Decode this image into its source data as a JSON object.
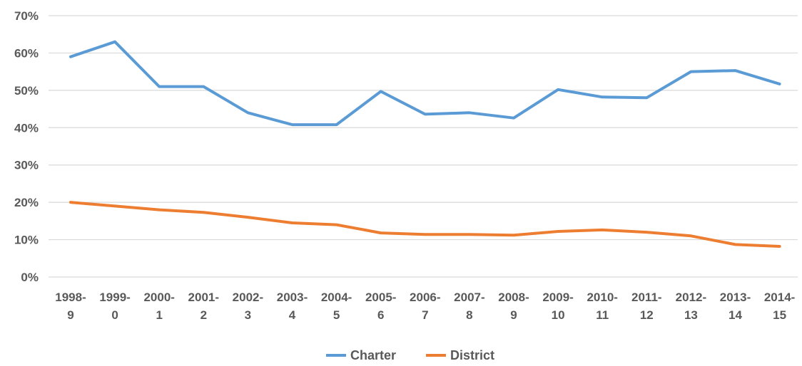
{
  "chart_data": {
    "type": "line",
    "title": "",
    "xlabel": "",
    "ylabel": "",
    "ylim": [
      0,
      70
    ],
    "y_ticks": [
      {
        "value": 0,
        "label": "0%"
      },
      {
        "value": 10,
        "label": "10%"
      },
      {
        "value": 20,
        "label": "20%"
      },
      {
        "value": 30,
        "label": "30%"
      },
      {
        "value": 40,
        "label": "40%"
      },
      {
        "value": 50,
        "label": "50%"
      },
      {
        "value": 60,
        "label": "60%"
      },
      {
        "value": 70,
        "label": "70%"
      }
    ],
    "categories": [
      {
        "line1": "1998-",
        "line2": "9"
      },
      {
        "line1": "1999-",
        "line2": "0"
      },
      {
        "line1": "2000-",
        "line2": "1"
      },
      {
        "line1": "2001-",
        "line2": "2"
      },
      {
        "line1": "2002-",
        "line2": "3"
      },
      {
        "line1": "2003-",
        "line2": "4"
      },
      {
        "line1": "2004-",
        "line2": "5"
      },
      {
        "line1": "2005-",
        "line2": "6"
      },
      {
        "line1": "2006-",
        "line2": "7"
      },
      {
        "line1": "2007-",
        "line2": "8"
      },
      {
        "line1": "2008-",
        "line2": "9"
      },
      {
        "line1": "2009-",
        "line2": "10"
      },
      {
        "line1": "2010-",
        "line2": "11"
      },
      {
        "line1": "2011-",
        "line2": "12"
      },
      {
        "line1": "2012-",
        "line2": "13"
      },
      {
        "line1": "2013-",
        "line2": "14"
      },
      {
        "line1": "2014-",
        "line2": "15"
      }
    ],
    "series": [
      {
        "name": "Charter",
        "color": "#5b9bd5",
        "values": [
          59.0,
          63.0,
          51.0,
          51.0,
          44.0,
          40.8,
          40.8,
          49.7,
          43.6,
          44.0,
          42.6,
          50.2,
          48.2,
          48.0,
          55.0,
          55.3,
          51.7
        ]
      },
      {
        "name": "District",
        "color": "#ed7d31",
        "values": [
          20.0,
          19.0,
          18.0,
          17.3,
          16.0,
          14.5,
          14.0,
          11.8,
          11.4,
          11.4,
          11.2,
          12.2,
          12.6,
          12.0,
          11.0,
          8.7,
          8.2
        ]
      }
    ],
    "grid": true,
    "legend_position": "bottom"
  }
}
